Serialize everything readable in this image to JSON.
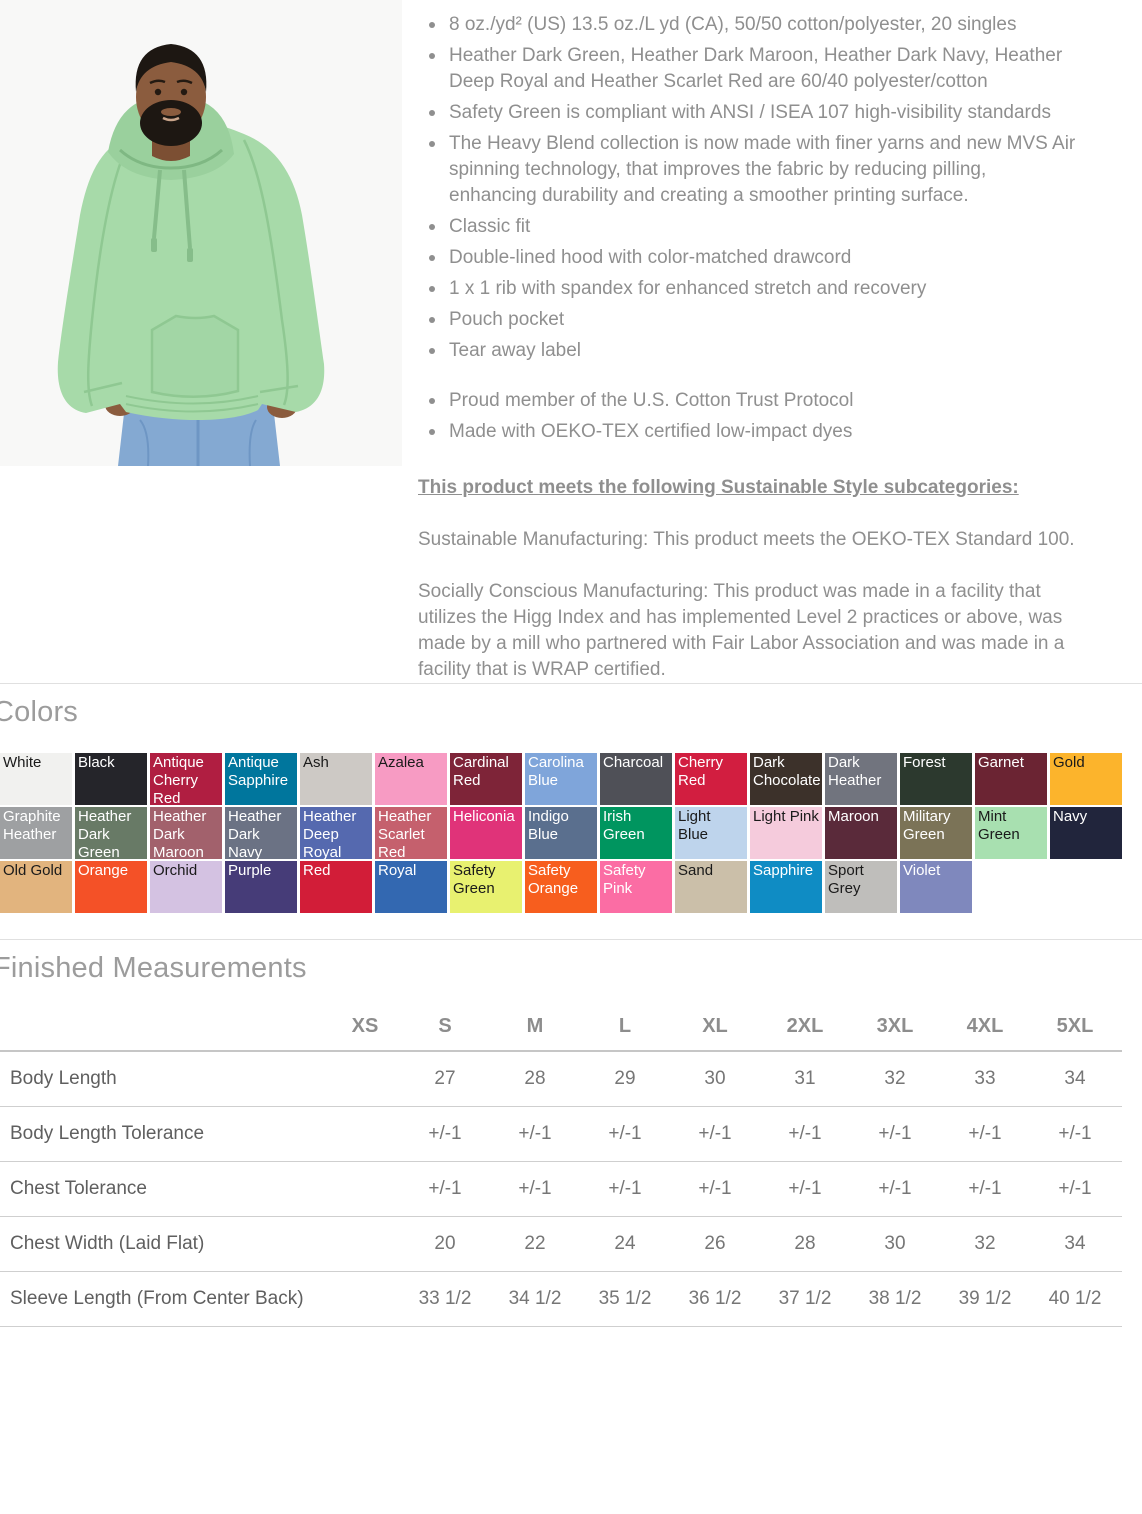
{
  "product": {
    "image_alt": "Model wearing mint green pullover hooded sweatshirt",
    "bullets": [
      "8 oz./yd² (US) 13.5 oz./L yd (CA), 50/50 cotton/polyester, 20 singles",
      "Heather Dark Green, Heather Dark Maroon, Heather Dark Navy, Heather Deep Royal and Heather Scarlet Red are 60/40 polyester/cotton",
      "Safety Green is compliant with ANSI / ISEA 107 high-visibility standards",
      "The Heavy Blend collection is now made with finer yarns and new MVS Air spinning technology, that improves the fabric by reducing pilling, enhancing durability and creating a smoother printing surface.",
      "Classic fit",
      "Double-lined hood with color-matched drawcord",
      "1 x 1 rib with spandex for enhanced stretch and recovery",
      "Pouch pocket",
      "Tear away label"
    ],
    "cert_bullets": [
      "Proud member of the U.S. Cotton Trust Protocol",
      "Made with OEKO-TEX certified low-impact dyes"
    ],
    "sustainable_heading": "This product meets the following Sustainable Style subcategories:",
    "paragraphs": [
      "Sustainable Manufacturing: This product meets the OEKO-TEX Standard 100.",
      "Socially Conscious Manufacturing: This product was made in a facility that utilizes the Higg Index and has implemented Level 2 practices or above, was made by a mill who partnered with Fair Labor Association and was made in a facility that is WRAP certified."
    ]
  },
  "colors_section": {
    "title": "Colors",
    "swatches": [
      {
        "name": "White",
        "bg": "#F1F1EF",
        "text": "#1a1a1a"
      },
      {
        "name": "Black",
        "bg": "#25252A",
        "text": "#ffffff"
      },
      {
        "name": "Antique Cherry Red",
        "bg": "#B01E41",
        "text": "#ffffff"
      },
      {
        "name": "Antique Sapphire",
        "bg": "#00769D",
        "text": "#ffffff"
      },
      {
        "name": "Ash",
        "bg": "#CDC9C5",
        "text": "#1a1a1a"
      },
      {
        "name": "Azalea",
        "bg": "#F79BC3",
        "text": "#1a1a1a"
      },
      {
        "name": "Cardinal Red",
        "bg": "#7E2438",
        "text": "#ffffff"
      },
      {
        "name": "Carolina Blue",
        "bg": "#7FA5DA",
        "text": "#ffffff"
      },
      {
        "name": "Charcoal",
        "bg": "#4F5057",
        "text": "#ffffff"
      },
      {
        "name": "Cherry Red",
        "bg": "#D21E40",
        "text": "#ffffff"
      },
      {
        "name": "Dark Chocolate",
        "bg": "#3C312A",
        "text": "#ffffff"
      },
      {
        "name": "Dark Heather",
        "bg": "#71747E",
        "text": "#ffffff"
      },
      {
        "name": "Forest",
        "bg": "#2C392E",
        "text": "#ffffff"
      },
      {
        "name": "Garnet",
        "bg": "#6B2433",
        "text": "#ffffff"
      },
      {
        "name": "Gold",
        "bg": "#FCB42C",
        "text": "#1a1a1a"
      },
      {
        "name": "Graphite Heather",
        "bg": "#9EA0A2",
        "text": "#ffffff"
      },
      {
        "name": "Heather Dark Green",
        "bg": "#687A66",
        "text": "#ffffff"
      },
      {
        "name": "Heather Dark Maroon",
        "bg": "#A2616C",
        "text": "#ffffff"
      },
      {
        "name": "Heather Dark Navy",
        "bg": "#6B7284",
        "text": "#ffffff"
      },
      {
        "name": "Heather Deep Royal",
        "bg": "#5569AF",
        "text": "#ffffff"
      },
      {
        "name": "Heather Scarlet Red",
        "bg": "#C5606D",
        "text": "#ffffff"
      },
      {
        "name": "Heliconia",
        "bg": "#E03379",
        "text": "#ffffff"
      },
      {
        "name": "Indigo Blue",
        "bg": "#5A6F8E",
        "text": "#ffffff"
      },
      {
        "name": "Irish Green",
        "bg": "#00955F",
        "text": "#ffffff"
      },
      {
        "name": "Light Blue",
        "bg": "#BED4EC",
        "text": "#1a1a1a"
      },
      {
        "name": "Light Pink",
        "bg": "#F5CBDC",
        "text": "#1a1a1a"
      },
      {
        "name": "Maroon",
        "bg": "#5A2A3A",
        "text": "#ffffff"
      },
      {
        "name": "Military Green",
        "bg": "#7B7357",
        "text": "#ffffff"
      },
      {
        "name": "Mint Green",
        "bg": "#A8E0B0",
        "text": "#1a1a1a"
      },
      {
        "name": "Navy",
        "bg": "#21253C",
        "text": "#ffffff"
      },
      {
        "name": "Old Gold",
        "bg": "#E2B47E",
        "text": "#1a1a1a"
      },
      {
        "name": "Orange",
        "bg": "#F45127",
        "text": "#ffffff"
      },
      {
        "name": "Orchid",
        "bg": "#D4C2E2",
        "text": "#1a1a1a"
      },
      {
        "name": "Purple",
        "bg": "#463C78",
        "text": "#ffffff"
      },
      {
        "name": "Red",
        "bg": "#D21D38",
        "text": "#ffffff"
      },
      {
        "name": "Royal",
        "bg": "#3368B1",
        "text": "#ffffff"
      },
      {
        "name": "Safety Green",
        "bg": "#E8F170",
        "text": "#1a1a1a"
      },
      {
        "name": "Safety Orange",
        "bg": "#F75E1E",
        "text": "#ffffff"
      },
      {
        "name": "Safety Pink",
        "bg": "#FB6DA4",
        "text": "#ffffff"
      },
      {
        "name": "Sand",
        "bg": "#CBBFA9",
        "text": "#1a1a1a"
      },
      {
        "name": "Sapphire",
        "bg": "#0F8CC4",
        "text": "#ffffff"
      },
      {
        "name": "Sport Grey",
        "bg": "#BFBEBB",
        "text": "#1a1a1a"
      },
      {
        "name": "Violet",
        "bg": "#7F88BD",
        "text": "#ffffff"
      }
    ]
  },
  "measurements": {
    "title": "Finished Measurements",
    "sizes": [
      "XS",
      "S",
      "M",
      "L",
      "XL",
      "2XL",
      "3XL",
      "4XL",
      "5XL"
    ],
    "rows": [
      {
        "label": "Body Length",
        "values": [
          "",
          "27",
          "28",
          "29",
          "30",
          "31",
          "32",
          "33",
          "34"
        ]
      },
      {
        "label": "Body Length Tolerance",
        "values": [
          "",
          "+/-1",
          "+/-1",
          "+/-1",
          "+/-1",
          "+/-1",
          "+/-1",
          "+/-1",
          "+/-1"
        ]
      },
      {
        "label": "Chest Tolerance",
        "values": [
          "",
          "+/-1",
          "+/-1",
          "+/-1",
          "+/-1",
          "+/-1",
          "+/-1",
          "+/-1",
          "+/-1"
        ]
      },
      {
        "label": "Chest Width (Laid Flat)",
        "values": [
          "",
          "20",
          "22",
          "24",
          "26",
          "28",
          "30",
          "32",
          "34"
        ]
      },
      {
        "label": "Sleeve Length (From Center Back)",
        "values": [
          "",
          "33 1/2",
          "34 1/2",
          "35 1/2",
          "36 1/2",
          "37 1/2",
          "38 1/2",
          "39 1/2",
          "40 1/2"
        ]
      }
    ]
  }
}
